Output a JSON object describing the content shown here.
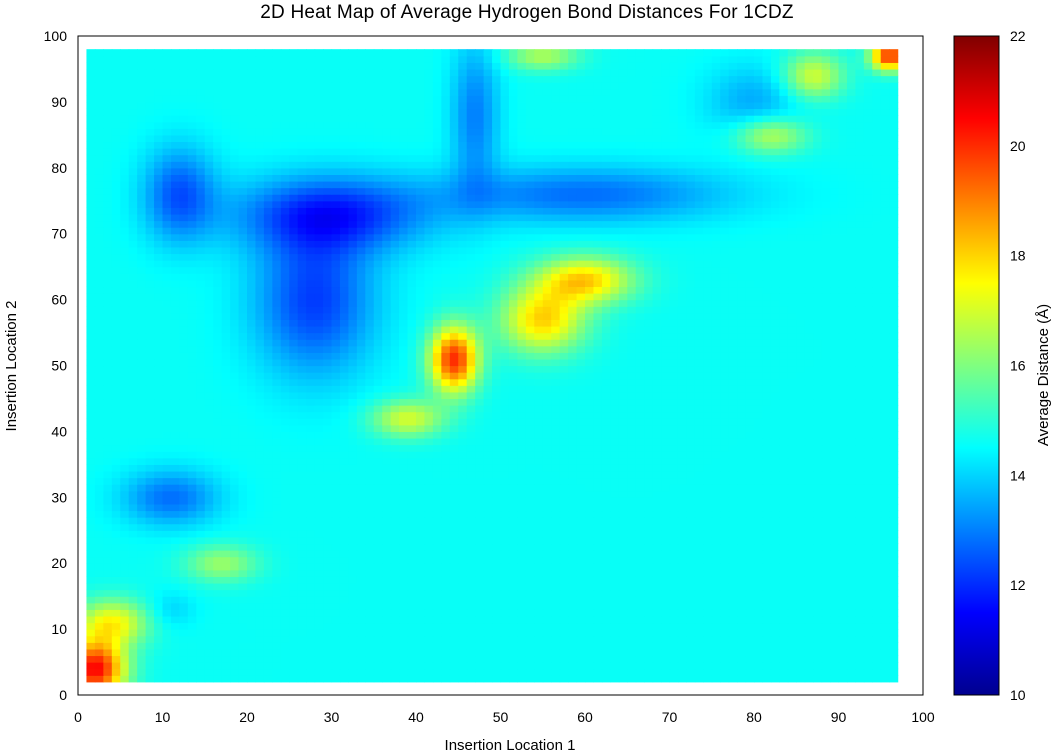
{
  "chart_data": {
    "type": "heatmap",
    "title": "2D Heat Map of Average Hydrogen Bond Distances For 1CDZ",
    "xlabel": "Insertion Location 1",
    "ylabel": "Insertion Location 2",
    "colorbar_label": "Average Distance (Å)",
    "xlim": [
      0,
      100
    ],
    "ylim": [
      0,
      100
    ],
    "x_ticks": [
      0,
      10,
      20,
      30,
      40,
      50,
      60,
      70,
      80,
      90,
      100
    ],
    "y_ticks": [
      0,
      10,
      20,
      30,
      40,
      50,
      60,
      70,
      80,
      90,
      100
    ],
    "colorbar_range": [
      10,
      22
    ],
    "colorbar_ticks": [
      10,
      12,
      14,
      16,
      18,
      20,
      22
    ],
    "colormap": "jet",
    "data_extent": {
      "x": [
        1,
        97
      ],
      "y": [
        2,
        98
      ]
    },
    "baseline_value": 14.6,
    "features": [
      {
        "x": 2,
        "y": 4,
        "value": 20.5,
        "sx": 2.5,
        "sy": 3
      },
      {
        "x": 4,
        "y": 11,
        "value": 17.5,
        "sx": 3,
        "sy": 2.5
      },
      {
        "x": 17,
        "y": 20,
        "value": 16.3,
        "sx": 3,
        "sy": 2
      },
      {
        "x": 11,
        "y": 13,
        "value": 14.0,
        "sx": 2,
        "sy": 2
      },
      {
        "x": 44.5,
        "y": 51,
        "value": 20.0,
        "sx": 2,
        "sy": 3.5
      },
      {
        "x": 39,
        "y": 42,
        "value": 17.0,
        "sx": 3,
        "sy": 2
      },
      {
        "x": 55,
        "y": 57,
        "value": 18.0,
        "sx": 3.5,
        "sy": 3.5
      },
      {
        "x": 60,
        "y": 63,
        "value": 18.0,
        "sx": 4,
        "sy": 2.5
      },
      {
        "x": 82,
        "y": 85,
        "value": 16.8,
        "sx": 3,
        "sy": 2
      },
      {
        "x": 87,
        "y": 94,
        "value": 17.0,
        "sx": 2.5,
        "sy": 2.5
      },
      {
        "x": 96,
        "y": 97,
        "value": 20.0,
        "sx": 1.5,
        "sy": 1.5
      },
      {
        "x": 55,
        "y": 97,
        "value": 16.5,
        "sx": 3,
        "sy": 1.5
      },
      {
        "x": 28,
        "y": 60,
        "value": 12.2,
        "sx": 5,
        "sy": 8
      },
      {
        "x": 30,
        "y": 73,
        "value": 12.0,
        "sx": 8,
        "sy": 4
      },
      {
        "x": 12,
        "y": 76,
        "value": 12.5,
        "sx": 3,
        "sy": 5
      },
      {
        "x": 11,
        "y": 30,
        "value": 12.8,
        "sx": 4,
        "sy": 3
      },
      {
        "x": 60,
        "y": 76,
        "value": 12.8,
        "sx": 12,
        "sy": 3
      },
      {
        "x": 47,
        "y": 88,
        "value": 13.0,
        "sx": 2,
        "sy": 8
      },
      {
        "x": 80,
        "y": 90,
        "value": 13.5,
        "sx": 4,
        "sy": 4
      }
    ]
  }
}
